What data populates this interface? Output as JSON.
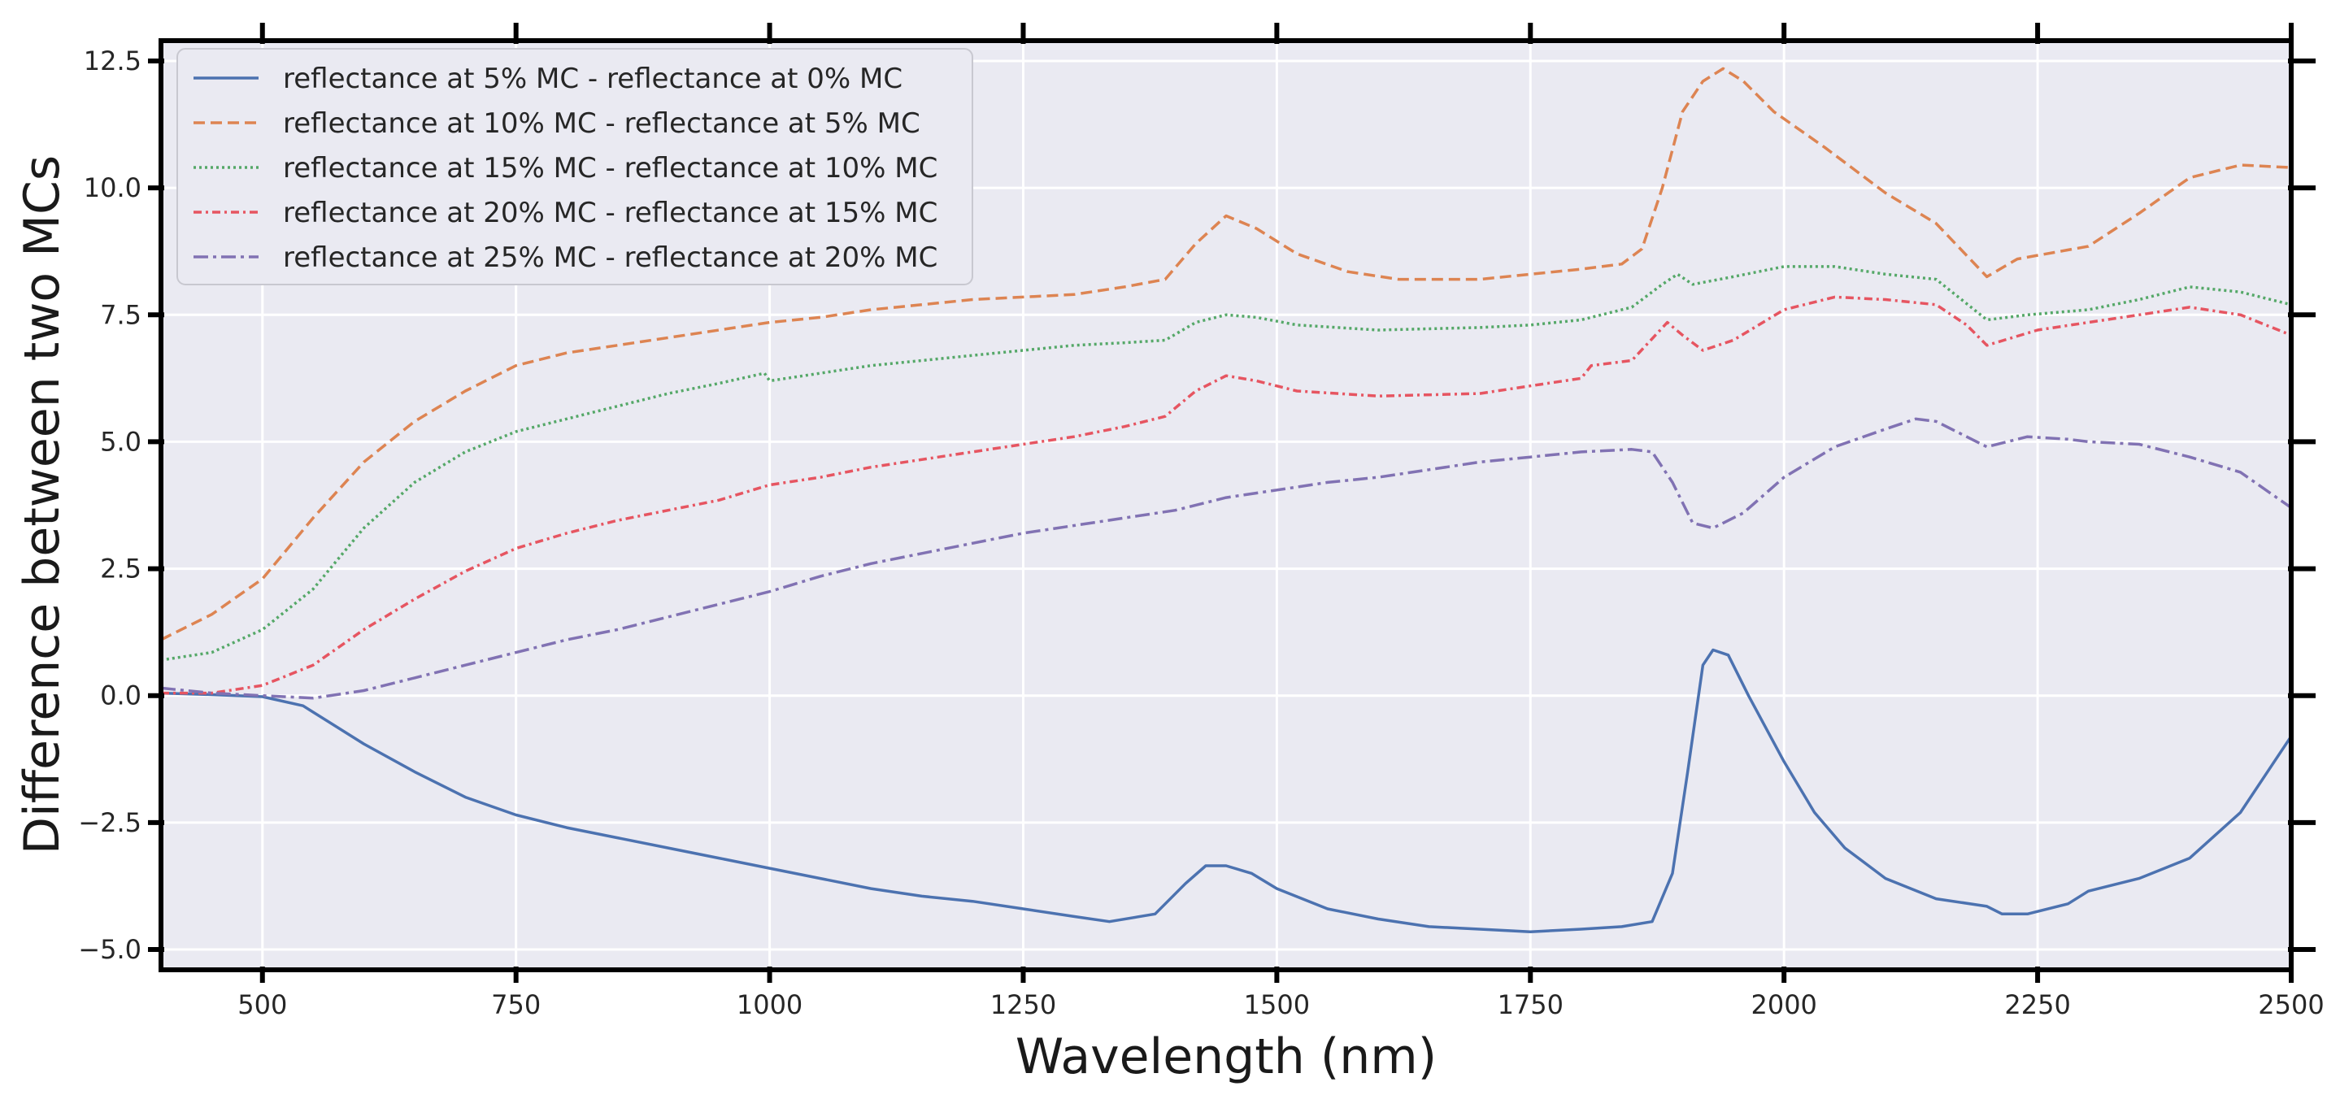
{
  "chart_data": {
    "type": "line",
    "title": "",
    "xlabel": "Wavelength (nm)",
    "ylabel": "Difference between two MCs",
    "xlim": [
      400,
      2500
    ],
    "ylim": [
      -5.4,
      12.9
    ],
    "grid": true,
    "legend_position": "top-left",
    "x_ticks": [
      500,
      750,
      1000,
      1250,
      1500,
      1750,
      2000,
      2250,
      2500
    ],
    "x_tick_labels": [
      "500",
      "750",
      "1000",
      "1250",
      "1500",
      "1750",
      "2000",
      "2250",
      "2500"
    ],
    "y_ticks": [
      -5.0,
      -2.5,
      0.0,
      2.5,
      5.0,
      7.5,
      10.0,
      12.5
    ],
    "y_tick_labels": [
      "−5.0",
      "−2.5",
      "0.0",
      "2.5",
      "5.0",
      "7.5",
      "10.0",
      "12.5"
    ],
    "series": [
      {
        "name": "reflectance at 5% MC - reflectance at 0% MC",
        "color": "#4c72b0",
        "dash": "solid",
        "points": [
          [
            400,
            0.05
          ],
          [
            450,
            0.02
          ],
          [
            500,
            -0.02
          ],
          [
            540,
            -0.2
          ],
          [
            600,
            -0.95
          ],
          [
            650,
            -1.5
          ],
          [
            700,
            -2.0
          ],
          [
            750,
            -2.35
          ],
          [
            800,
            -2.6
          ],
          [
            850,
            -2.8
          ],
          [
            900,
            -3.0
          ],
          [
            950,
            -3.2
          ],
          [
            1000,
            -3.4
          ],
          [
            1050,
            -3.6
          ],
          [
            1100,
            -3.8
          ],
          [
            1150,
            -3.95
          ],
          [
            1200,
            -4.05
          ],
          [
            1250,
            -4.2
          ],
          [
            1300,
            -4.35
          ],
          [
            1335,
            -4.45
          ],
          [
            1380,
            -4.3
          ],
          [
            1410,
            -3.7
          ],
          [
            1430,
            -3.35
          ],
          [
            1450,
            -3.35
          ],
          [
            1475,
            -3.5
          ],
          [
            1500,
            -3.8
          ],
          [
            1550,
            -4.2
          ],
          [
            1600,
            -4.4
          ],
          [
            1650,
            -4.55
          ],
          [
            1700,
            -4.6
          ],
          [
            1750,
            -4.65
          ],
          [
            1800,
            -4.6
          ],
          [
            1840,
            -4.55
          ],
          [
            1870,
            -4.45
          ],
          [
            1890,
            -3.5
          ],
          [
            1905,
            -1.5
          ],
          [
            1920,
            0.6
          ],
          [
            1930,
            0.9
          ],
          [
            1945,
            0.8
          ],
          [
            1965,
            0.0
          ],
          [
            2000,
            -1.3
          ],
          [
            2030,
            -2.3
          ],
          [
            2060,
            -3.0
          ],
          [
            2100,
            -3.6
          ],
          [
            2150,
            -4.0
          ],
          [
            2200,
            -4.15
          ],
          [
            2215,
            -4.3
          ],
          [
            2240,
            -4.3
          ],
          [
            2280,
            -4.1
          ],
          [
            2300,
            -3.85
          ],
          [
            2350,
            -3.6
          ],
          [
            2400,
            -3.2
          ],
          [
            2450,
            -2.3
          ],
          [
            2480,
            -1.4
          ],
          [
            2500,
            -0.8
          ]
        ]
      },
      {
        "name": "reflectance at 10% MC - reflectance at 5% MC",
        "color": "#dd8452",
        "dash": "dashed",
        "points": [
          [
            400,
            1.1
          ],
          [
            450,
            1.6
          ],
          [
            500,
            2.3
          ],
          [
            550,
            3.5
          ],
          [
            600,
            4.6
          ],
          [
            650,
            5.4
          ],
          [
            700,
            6.0
          ],
          [
            750,
            6.5
          ],
          [
            800,
            6.75
          ],
          [
            850,
            6.9
          ],
          [
            900,
            7.05
          ],
          [
            950,
            7.2
          ],
          [
            1000,
            7.35
          ],
          [
            1050,
            7.45
          ],
          [
            1100,
            7.6
          ],
          [
            1150,
            7.7
          ],
          [
            1200,
            7.8
          ],
          [
            1250,
            7.85
          ],
          [
            1300,
            7.9
          ],
          [
            1350,
            8.05
          ],
          [
            1390,
            8.2
          ],
          [
            1420,
            8.9
          ],
          [
            1450,
            9.45
          ],
          [
            1480,
            9.2
          ],
          [
            1520,
            8.7
          ],
          [
            1570,
            8.35
          ],
          [
            1620,
            8.2
          ],
          [
            1700,
            8.2
          ],
          [
            1750,
            8.3
          ],
          [
            1800,
            8.4
          ],
          [
            1840,
            8.5
          ],
          [
            1860,
            8.8
          ],
          [
            1880,
            10.0
          ],
          [
            1900,
            11.5
          ],
          [
            1920,
            12.1
          ],
          [
            1940,
            12.35
          ],
          [
            1960,
            12.1
          ],
          [
            1990,
            11.5
          ],
          [
            2040,
            10.8
          ],
          [
            2100,
            9.9
          ],
          [
            2150,
            9.3
          ],
          [
            2200,
            8.25
          ],
          [
            2230,
            8.6
          ],
          [
            2300,
            8.85
          ],
          [
            2350,
            9.5
          ],
          [
            2400,
            10.2
          ],
          [
            2450,
            10.45
          ],
          [
            2500,
            10.4
          ]
        ]
      },
      {
        "name": "reflectance at 15% MC - reflectance at 10% MC",
        "color": "#55a868",
        "dash": "dotted",
        "points": [
          [
            400,
            0.7
          ],
          [
            450,
            0.85
          ],
          [
            500,
            1.3
          ],
          [
            550,
            2.1
          ],
          [
            600,
            3.3
          ],
          [
            650,
            4.2
          ],
          [
            700,
            4.8
          ],
          [
            750,
            5.2
          ],
          [
            800,
            5.45
          ],
          [
            850,
            5.7
          ],
          [
            900,
            5.95
          ],
          [
            950,
            6.15
          ],
          [
            995,
            6.35
          ],
          [
            1000,
            6.2
          ],
          [
            1050,
            6.35
          ],
          [
            1100,
            6.5
          ],
          [
            1150,
            6.6
          ],
          [
            1200,
            6.7
          ],
          [
            1250,
            6.8
          ],
          [
            1300,
            6.9
          ],
          [
            1350,
            6.95
          ],
          [
            1390,
            7.0
          ],
          [
            1420,
            7.35
          ],
          [
            1450,
            7.5
          ],
          [
            1480,
            7.45
          ],
          [
            1520,
            7.3
          ],
          [
            1600,
            7.2
          ],
          [
            1700,
            7.25
          ],
          [
            1750,
            7.3
          ],
          [
            1800,
            7.4
          ],
          [
            1850,
            7.65
          ],
          [
            1880,
            8.1
          ],
          [
            1895,
            8.3
          ],
          [
            1910,
            8.1
          ],
          [
            1950,
            8.25
          ],
          [
            2000,
            8.45
          ],
          [
            2050,
            8.45
          ],
          [
            2100,
            8.3
          ],
          [
            2150,
            8.2
          ],
          [
            2200,
            7.4
          ],
          [
            2240,
            7.5
          ],
          [
            2300,
            7.6
          ],
          [
            2350,
            7.8
          ],
          [
            2400,
            8.05
          ],
          [
            2450,
            7.95
          ],
          [
            2500,
            7.7
          ]
        ]
      },
      {
        "name": "reflectance at 20% MC - reflectance at 15% MC",
        "color": "#e65561",
        "dash": "dashdot-tight",
        "points": [
          [
            400,
            0.05
          ],
          [
            450,
            0.05
          ],
          [
            500,
            0.2
          ],
          [
            550,
            0.6
          ],
          [
            600,
            1.3
          ],
          [
            650,
            1.9
          ],
          [
            700,
            2.45
          ],
          [
            750,
            2.9
          ],
          [
            800,
            3.2
          ],
          [
            850,
            3.45
          ],
          [
            900,
            3.65
          ],
          [
            950,
            3.85
          ],
          [
            1000,
            4.15
          ],
          [
            1050,
            4.3
          ],
          [
            1100,
            4.5
          ],
          [
            1150,
            4.65
          ],
          [
            1200,
            4.8
          ],
          [
            1250,
            4.95
          ],
          [
            1300,
            5.1
          ],
          [
            1350,
            5.3
          ],
          [
            1390,
            5.5
          ],
          [
            1420,
            6.0
          ],
          [
            1450,
            6.3
          ],
          [
            1480,
            6.2
          ],
          [
            1520,
            6.0
          ],
          [
            1600,
            5.9
          ],
          [
            1700,
            5.95
          ],
          [
            1750,
            6.1
          ],
          [
            1800,
            6.25
          ],
          [
            1810,
            6.5
          ],
          [
            1850,
            6.6
          ],
          [
            1885,
            7.35
          ],
          [
            1900,
            7.1
          ],
          [
            1920,
            6.8
          ],
          [
            1950,
            7.0
          ],
          [
            2000,
            7.6
          ],
          [
            2050,
            7.85
          ],
          [
            2100,
            7.8
          ],
          [
            2150,
            7.7
          ],
          [
            2180,
            7.3
          ],
          [
            2200,
            6.9
          ],
          [
            2250,
            7.2
          ],
          [
            2300,
            7.35
          ],
          [
            2350,
            7.5
          ],
          [
            2400,
            7.65
          ],
          [
            2450,
            7.5
          ],
          [
            2500,
            7.1
          ]
        ]
      },
      {
        "name": "reflectance at 25% MC - reflectance at 20% MC",
        "color": "#8172b3",
        "dash": "dashdot",
        "points": [
          [
            400,
            0.15
          ],
          [
            450,
            0.05
          ],
          [
            500,
            0.0
          ],
          [
            550,
            -0.05
          ],
          [
            600,
            0.1
          ],
          [
            650,
            0.35
          ],
          [
            700,
            0.6
          ],
          [
            750,
            0.85
          ],
          [
            800,
            1.1
          ],
          [
            850,
            1.3
          ],
          [
            900,
            1.55
          ],
          [
            950,
            1.8
          ],
          [
            1000,
            2.05
          ],
          [
            1050,
            2.35
          ],
          [
            1100,
            2.6
          ],
          [
            1150,
            2.8
          ],
          [
            1200,
            3.0
          ],
          [
            1250,
            3.2
          ],
          [
            1300,
            3.35
          ],
          [
            1350,
            3.5
          ],
          [
            1400,
            3.65
          ],
          [
            1450,
            3.9
          ],
          [
            1500,
            4.05
          ],
          [
            1550,
            4.2
          ],
          [
            1600,
            4.3
          ],
          [
            1650,
            4.45
          ],
          [
            1700,
            4.6
          ],
          [
            1750,
            4.7
          ],
          [
            1800,
            4.8
          ],
          [
            1850,
            4.85
          ],
          [
            1870,
            4.8
          ],
          [
            1890,
            4.2
          ],
          [
            1910,
            3.4
          ],
          [
            1930,
            3.3
          ],
          [
            1960,
            3.6
          ],
          [
            2000,
            4.3
          ],
          [
            2050,
            4.9
          ],
          [
            2100,
            5.25
          ],
          [
            2130,
            5.45
          ],
          [
            2150,
            5.4
          ],
          [
            2200,
            4.9
          ],
          [
            2240,
            5.1
          ],
          [
            2280,
            5.05
          ],
          [
            2300,
            5.0
          ],
          [
            2350,
            4.95
          ],
          [
            2400,
            4.7
          ],
          [
            2450,
            4.4
          ],
          [
            2500,
            3.7
          ]
        ]
      }
    ]
  }
}
